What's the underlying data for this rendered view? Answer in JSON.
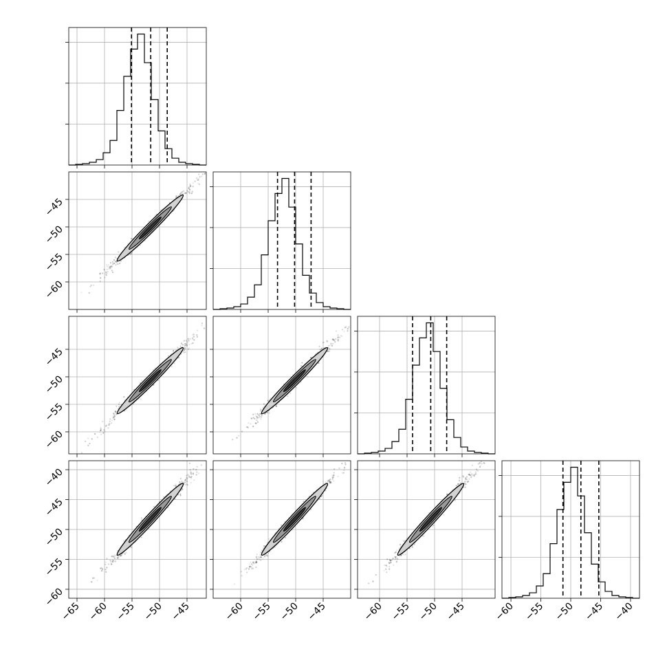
{
  "chart_data": {
    "type": "corner",
    "n_params": 4,
    "grid": true,
    "hist_bins": 20,
    "parameters": [
      {
        "range": [
          -66.5,
          -41.5
        ],
        "mean": -51.7,
        "sigma": 3.0,
        "quantiles": [
          -55.1,
          -51.6,
          -48.6
        ],
        "hist_values": [
          0.0,
          0.5,
          1,
          2,
          4,
          9,
          18,
          40,
          65,
          85,
          96,
          75,
          48,
          25,
          12,
          5,
          2,
          1,
          0.5,
          0
        ]
      },
      {
        "range": [
          -65,
          -40
        ],
        "mean": -50.2,
        "sigma": 3.0,
        "quantiles": [
          -53.3,
          -50.2,
          -47.2
        ],
        "hist_values": [
          0.0,
          0.5,
          1,
          2,
          4,
          9,
          18,
          40,
          65,
          85,
          96,
          75,
          48,
          25,
          12,
          5,
          2,
          1,
          0.5,
          0
        ]
      },
      {
        "range": [
          -64,
          -39
        ],
        "mean": -50.7,
        "sigma": 3.0,
        "quantiles": [
          -54.0,
          -50.7,
          -47.8
        ],
        "hist_values": [
          0.0,
          0.5,
          1,
          2,
          4,
          9,
          18,
          40,
          65,
          85,
          96,
          75,
          48,
          25,
          12,
          5,
          2,
          1,
          0.5,
          0
        ]
      },
      {
        "range": [
          -61.5,
          -38.5
        ],
        "mean": -48.3,
        "sigma": 3.0,
        "quantiles": [
          -51.3,
          -48.3,
          -45.3
        ],
        "hist_values": [
          0.0,
          0.5,
          1,
          2,
          4,
          9,
          18,
          40,
          65,
          85,
          96,
          75,
          48,
          25,
          12,
          5,
          2,
          1,
          0.5,
          0
        ]
      }
    ],
    "x_ticks": [
      [
        -65,
        -60,
        -55,
        -50,
        -45
      ],
      [
        -60,
        -55,
        -50,
        -45
      ],
      [
        -60,
        -55,
        -50,
        -45
      ],
      [
        -60,
        -55,
        -50,
        -45,
        -40
      ]
    ],
    "y_ticks": [
      null,
      [
        -45,
        -50,
        -55,
        -60
      ],
      [
        -45,
        -50,
        -55,
        -60
      ],
      [
        -40,
        -45,
        -50,
        -55,
        -60
      ]
    ],
    "correlation": 0.99
  }
}
